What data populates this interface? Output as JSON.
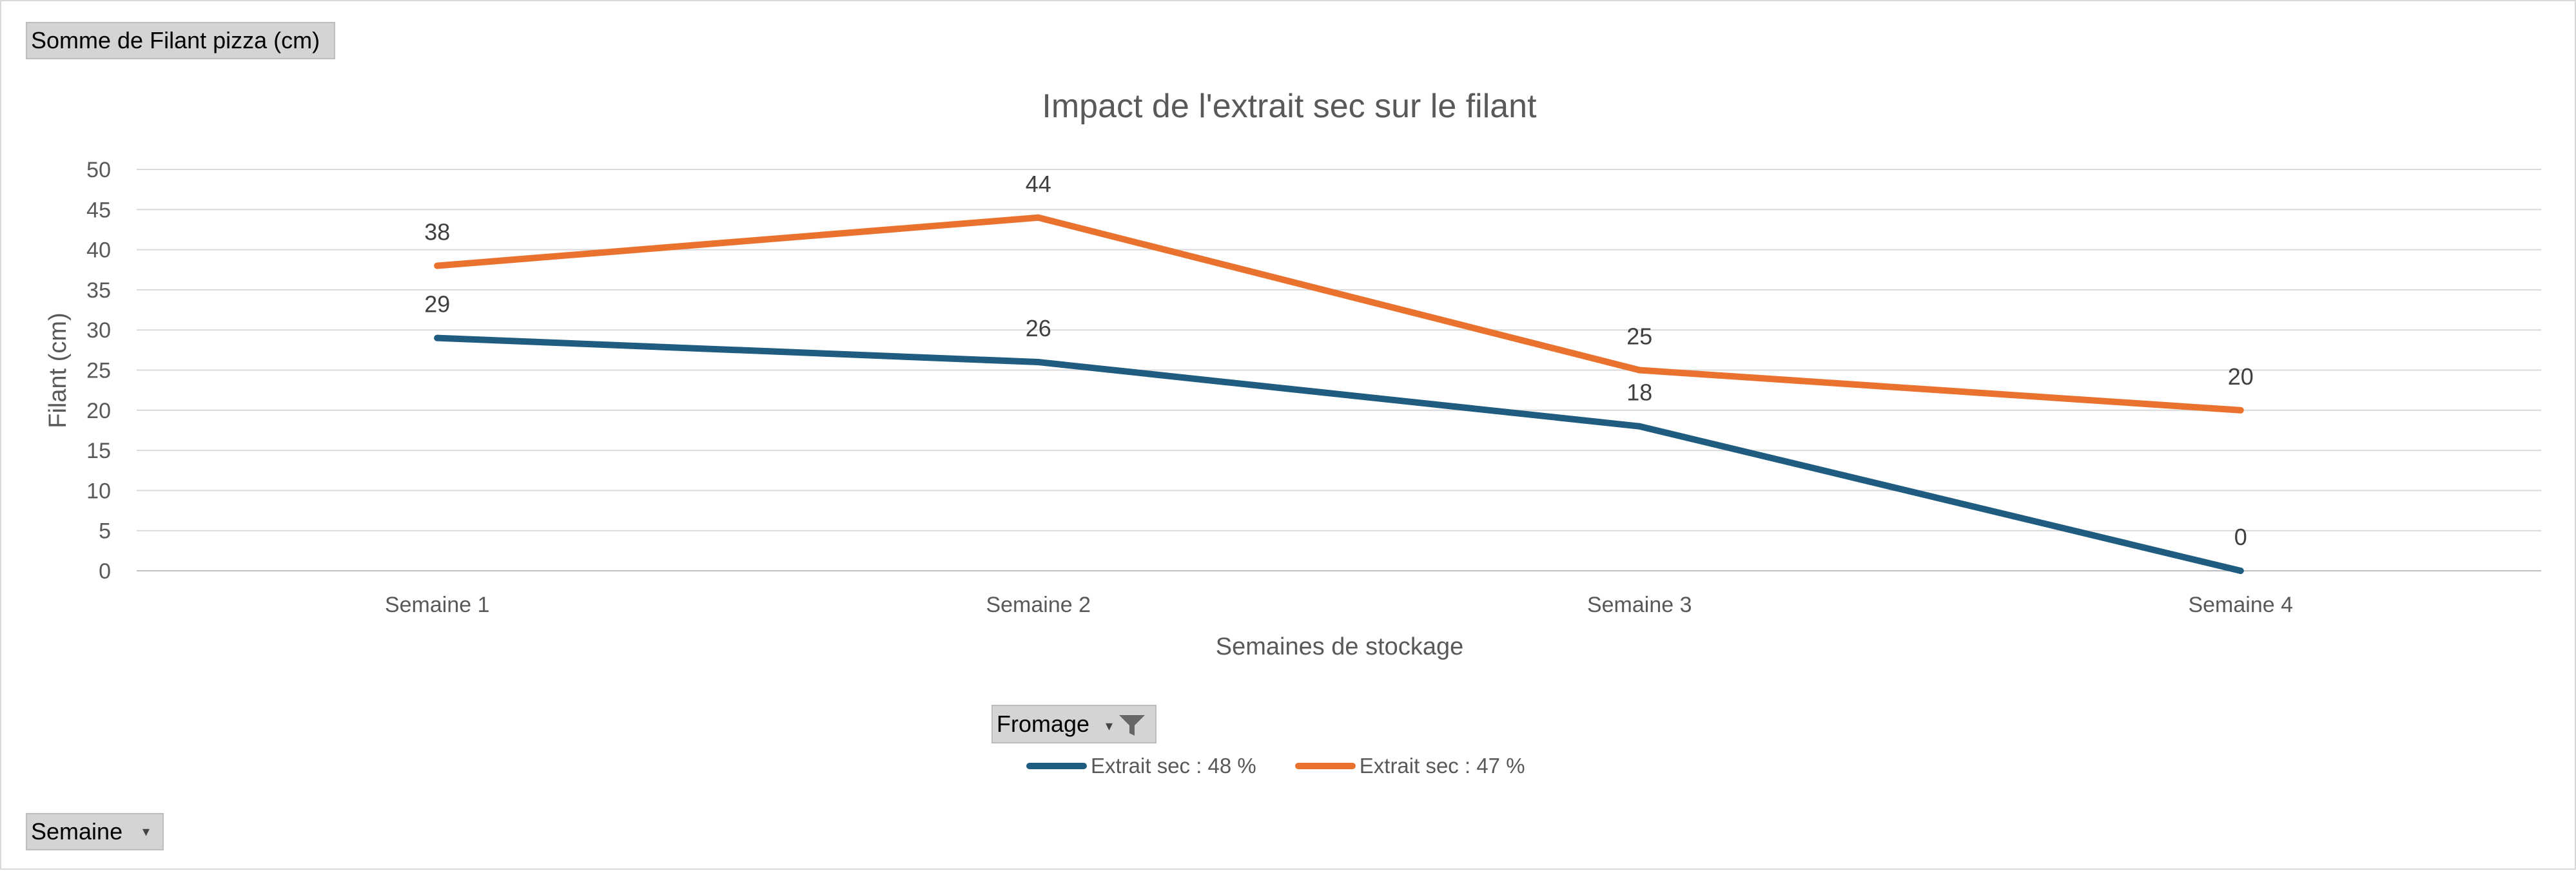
{
  "pivot": {
    "value_field": "Somme de Filant pizza (cm)",
    "legend_field": "Fromage",
    "category_field": "Semaine",
    "filter_icon": "funnel-filter-icon",
    "dropdown_icon": "dropdown-arrow-icon",
    "dropdown_glyph": "▾"
  },
  "chart_data": {
    "type": "line",
    "title": "Impact de l'extrait sec sur le filant",
    "xlabel": "Semaines de stockage",
    "ylabel": "Filant (cm)",
    "ylim": [
      0,
      50
    ],
    "ytick_step": 5,
    "categories": [
      "Semaine 1",
      "Semaine 2",
      "Semaine 3",
      "Semaine 4"
    ],
    "series": [
      {
        "name": "Extrait sec : 48 %",
        "color": "#1f5c7f",
        "values": [
          29,
          26,
          18,
          0
        ]
      },
      {
        "name": "Extrait sec : 47 %",
        "color": "#e9722e",
        "values": [
          38,
          44,
          25,
          20
        ]
      }
    ],
    "grid": true,
    "legend_position": "bottom",
    "data_labels": true
  }
}
